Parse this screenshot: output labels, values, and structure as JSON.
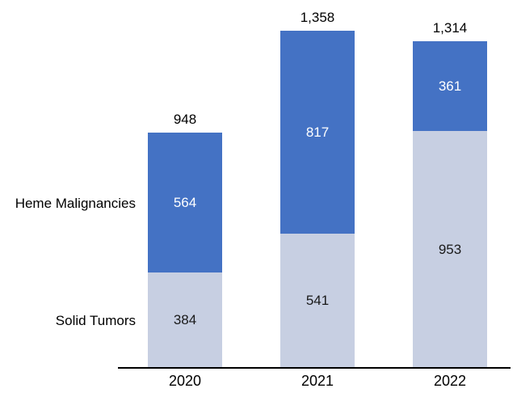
{
  "chart_data": {
    "type": "bar",
    "stacked": true,
    "title": "",
    "xlabel": "",
    "ylabel": "",
    "categories": [
      "2020",
      "2021",
      "2022"
    ],
    "series": [
      {
        "name": "Solid Tumors",
        "values": [
          384,
          541,
          953
        ],
        "color": "#c7cfe2",
        "label_color": "#1a1a1a"
      },
      {
        "name": "Heme Malignancies",
        "values": [
          564,
          817,
          361
        ],
        "color": "#4472c4",
        "label_color": "#ffffff"
      }
    ],
    "totals": [
      "948",
      "1,358",
      "1,314"
    ],
    "ylim": [
      0,
      1358
    ],
    "grid": false,
    "legend_position": "left-inline",
    "axis_line_color": "#000000",
    "background": "#ffffff"
  }
}
